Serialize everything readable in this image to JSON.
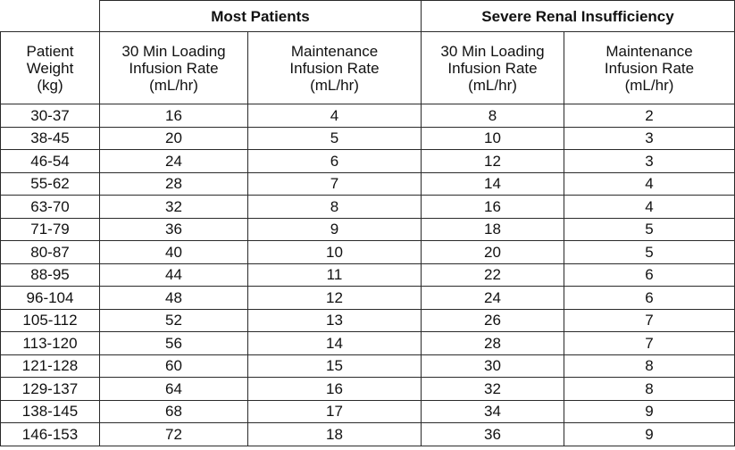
{
  "table": {
    "groups": {
      "most": "Most Patients",
      "severe": "Severe Renal Insufficiency"
    },
    "weight_header": [
      "Patient",
      "Weight",
      "(kg)"
    ],
    "loading_header": [
      "30 Min Loading",
      "Infusion Rate",
      "(mL/hr)"
    ],
    "maintenance_header": [
      "Maintenance",
      "Infusion Rate",
      "(mL/hr)"
    ],
    "rows": [
      [
        "30-37",
        "16",
        "4",
        "8",
        "2"
      ],
      [
        "38-45",
        "20",
        "5",
        "10",
        "3"
      ],
      [
        "46-54",
        "24",
        "6",
        "12",
        "3"
      ],
      [
        "55-62",
        "28",
        "7",
        "14",
        "4"
      ],
      [
        "63-70",
        "32",
        "8",
        "16",
        "4"
      ],
      [
        "71-79",
        "36",
        "9",
        "18",
        "5"
      ],
      [
        "80-87",
        "40",
        "10",
        "20",
        "5"
      ],
      [
        "88-95",
        "44",
        "11",
        "22",
        "6"
      ],
      [
        "96-104",
        "48",
        "12",
        "24",
        "6"
      ],
      [
        "105-112",
        "52",
        "13",
        "26",
        "7"
      ],
      [
        "113-120",
        "56",
        "14",
        "28",
        "7"
      ],
      [
        "121-128",
        "60",
        "15",
        "30",
        "8"
      ],
      [
        "129-137",
        "64",
        "16",
        "32",
        "8"
      ],
      [
        "138-145",
        "68",
        "17",
        "34",
        "9"
      ],
      [
        "146-153",
        "72",
        "18",
        "36",
        "9"
      ]
    ]
  }
}
